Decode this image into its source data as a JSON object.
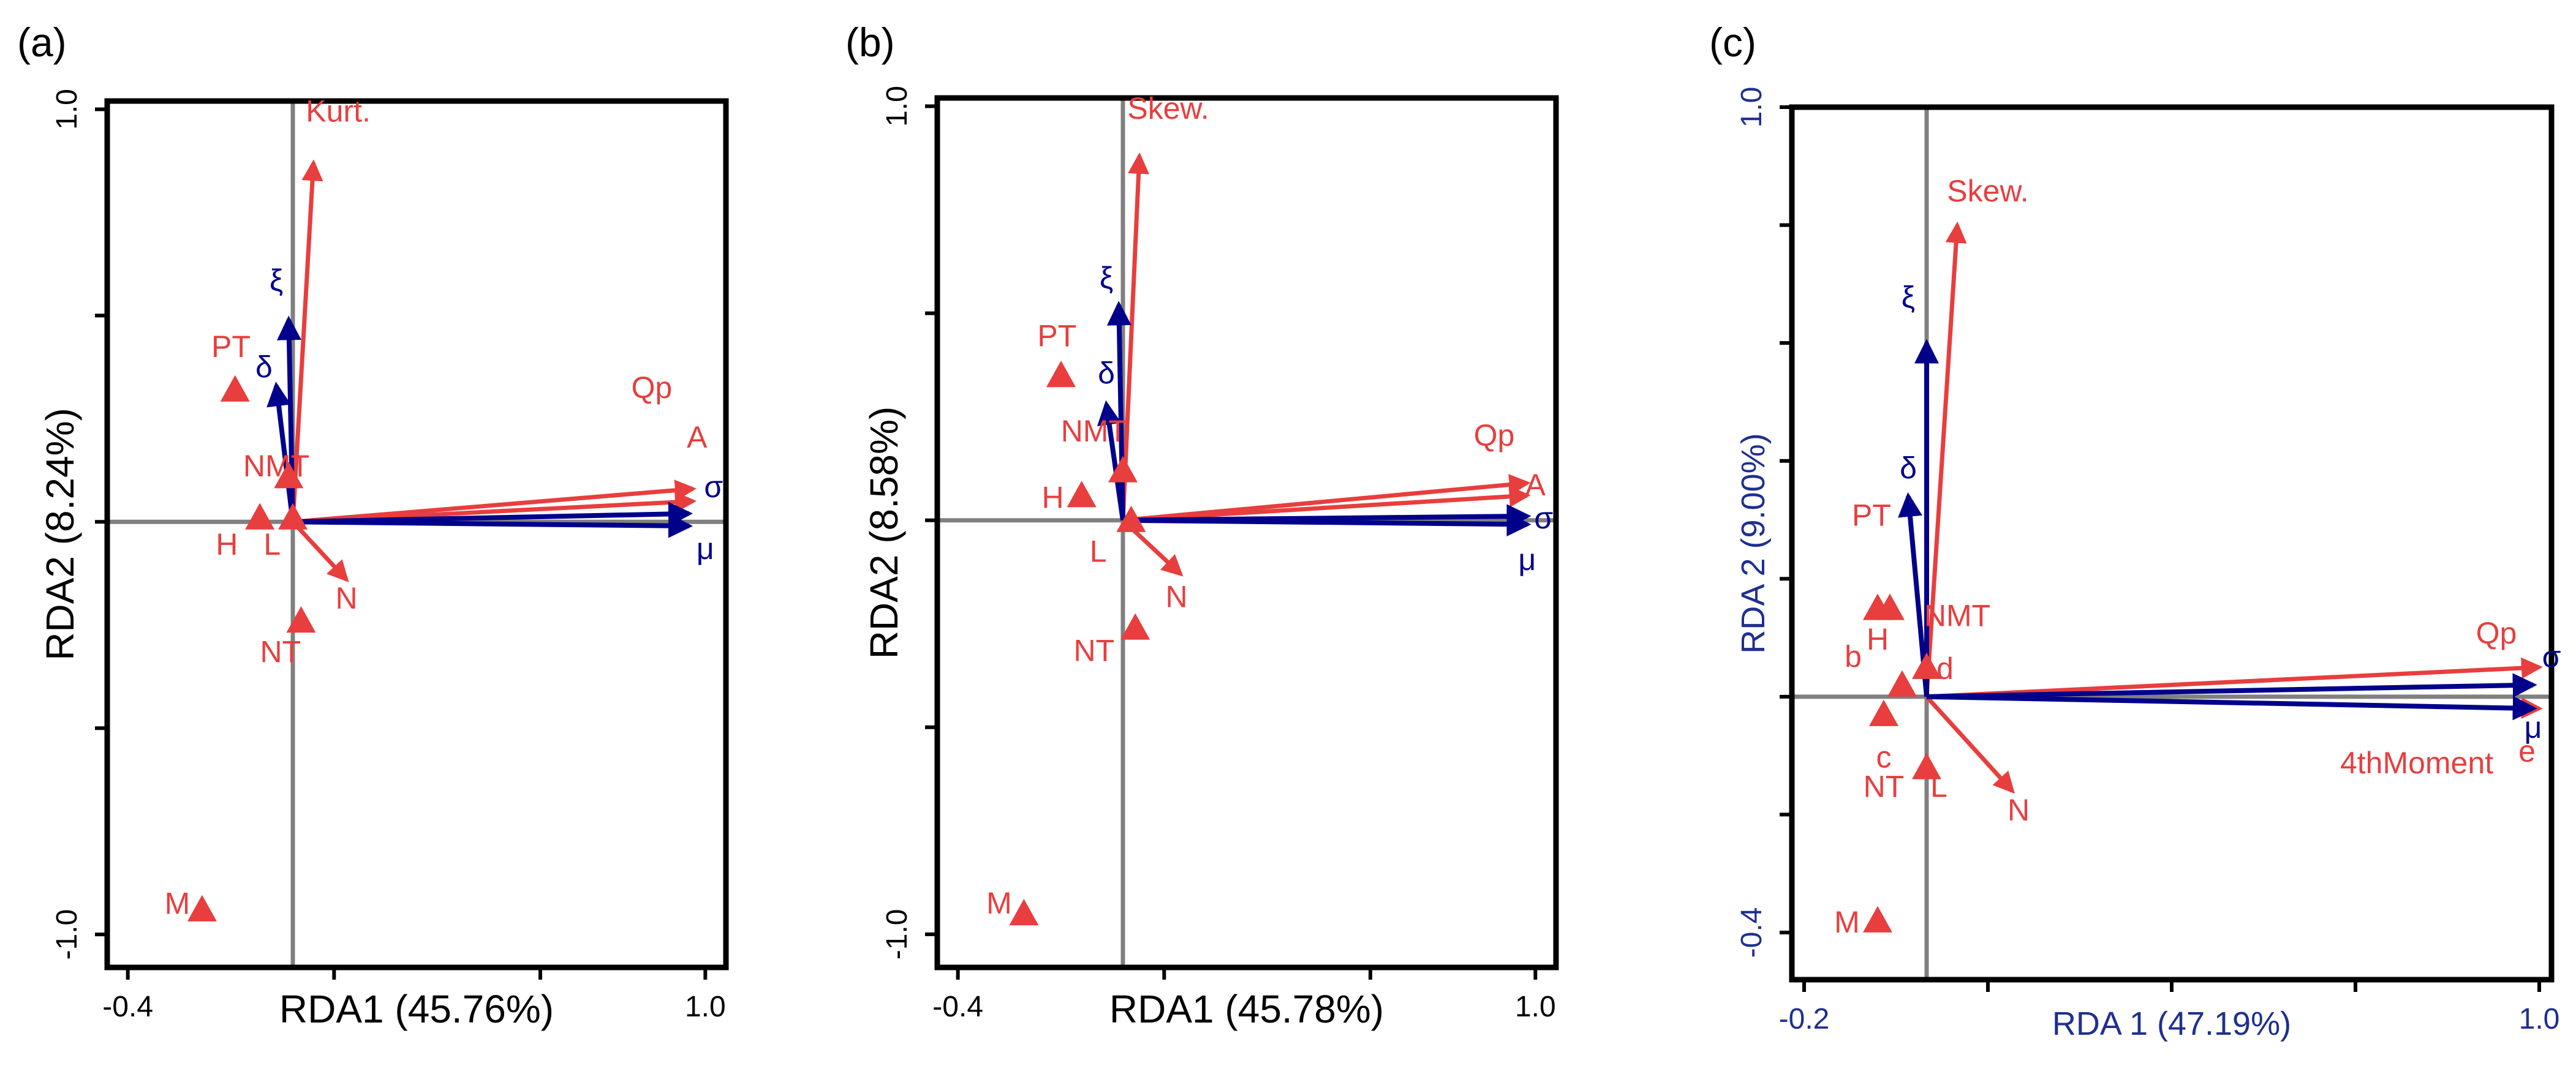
{
  "colors": {
    "response": "#e83e3e",
    "predictor": "#00008b",
    "axis": "#808080",
    "frame": "#000000",
    "panel_c_axis_text": "#1f2f8f"
  },
  "chart_data": [
    {
      "type": "scatter",
      "panel_label": "(a)",
      "xlabel": "RDA1 (45.76%)",
      "ylabel": "RDA2 (8.24%)",
      "xlim": [
        -0.45,
        1.05
      ],
      "ylim": [
        -1.08,
        1.02
      ],
      "x_tick_labels": [
        {
          "v": -0.4,
          "t": "-0.4"
        },
        {
          "v": 1.0,
          "t": "1.0"
        }
      ],
      "y_tick_labels": [
        {
          "v": 1.0,
          "t": "1.0"
        },
        {
          "v": -1.0,
          "t": "-1.0"
        }
      ],
      "x_tick_marks": [
        -0.4,
        0.1,
        0.6,
        1.0
      ],
      "y_tick_marks": [
        1.0,
        0.5,
        0.0,
        -0.5,
        -1.0
      ],
      "response_arrows": [
        {
          "label": "Kurt.",
          "x": 0.05,
          "y": 0.87,
          "lx": 0.11,
          "ly": 0.97
        },
        {
          "label": "Qp",
          "x": 0.97,
          "y": 0.08,
          "lx": 0.87,
          "ly": 0.3
        },
        {
          "label": "A",
          "x": 0.97,
          "y": 0.05,
          "lx": 0.98,
          "ly": 0.18
        },
        {
          "label": "N",
          "x": 0.13,
          "y": -0.14,
          "lx": 0.13,
          "ly": -0.21
        }
      ],
      "predictor_arrows": [
        {
          "label": "ξ",
          "x": -0.01,
          "y": 0.49,
          "lx": -0.04,
          "ly": 0.56
        },
        {
          "label": "δ",
          "x": -0.04,
          "y": 0.33,
          "lx": -0.07,
          "ly": 0.35
        },
        {
          "label": "σ",
          "x": 0.96,
          "y": 0.02,
          "lx": 1.02,
          "ly": 0.06
        },
        {
          "label": "μ",
          "x": 0.96,
          "y": -0.01,
          "lx": 1.0,
          "ly": -0.09
        }
      ],
      "sites": [
        {
          "label": "PT",
          "x": -0.14,
          "y": 0.32,
          "lx": -0.15,
          "ly": 0.4
        },
        {
          "label": "NMT",
          "x": -0.01,
          "y": 0.11,
          "lx": -0.04,
          "ly": 0.11
        },
        {
          "label": "H",
          "x": -0.08,
          "y": 0.01,
          "lx": -0.16,
          "ly": -0.08
        },
        {
          "label": "L",
          "x": 0.0,
          "y": 0.01,
          "lx": -0.05,
          "ly": -0.08
        },
        {
          "label": "NT",
          "x": 0.02,
          "y": -0.24,
          "lx": -0.03,
          "ly": -0.34
        },
        {
          "label": "M",
          "x": -0.22,
          "y": -0.94,
          "lx": -0.28,
          "ly": -0.95
        }
      ]
    },
    {
      "type": "scatter",
      "panel_label": "(b)",
      "xlabel": "RDA1 (45.78%)",
      "ylabel": "RDA2 (8.58%)",
      "xlim": [
        -0.45,
        1.05
      ],
      "ylim": [
        -1.08,
        1.02
      ],
      "x_tick_labels": [
        {
          "v": -0.4,
          "t": "-0.4"
        },
        {
          "v": 1.0,
          "t": "1.0"
        }
      ],
      "y_tick_labels": [
        {
          "v": 1.0,
          "t": "1.0"
        },
        {
          "v": -1.0,
          "t": "-1.0"
        }
      ],
      "x_tick_marks": [
        -0.4,
        0.1,
        0.6,
        1.0
      ],
      "y_tick_marks": [
        1.0,
        0.5,
        0.0,
        -0.5,
        -1.0
      ],
      "response_arrows": [
        {
          "label": "Skew.",
          "x": 0.04,
          "y": 0.88,
          "lx": 0.11,
          "ly": 0.97
        },
        {
          "label": "Qp",
          "x": 0.98,
          "y": 0.09,
          "lx": 0.9,
          "ly": 0.18
        },
        {
          "label": "A",
          "x": 0.98,
          "y": 0.06,
          "lx": 1.0,
          "ly": 0.06
        },
        {
          "label": "N",
          "x": 0.14,
          "y": -0.13,
          "lx": 0.13,
          "ly": -0.21
        }
      ],
      "predictor_arrows": [
        {
          "label": "ξ",
          "x": -0.01,
          "y": 0.52,
          "lx": -0.04,
          "ly": 0.56
        },
        {
          "label": "δ",
          "x": -0.04,
          "y": 0.28,
          "lx": -0.04,
          "ly": 0.33
        },
        {
          "label": "σ",
          "x": 0.98,
          "y": 0.01,
          "lx": 1.02,
          "ly": -0.02
        },
        {
          "label": "μ",
          "x": 0.98,
          "y": -0.01,
          "lx": 0.98,
          "ly": -0.12
        }
      ],
      "sites": [
        {
          "label": "PT",
          "x": -0.15,
          "y": 0.35,
          "lx": -0.16,
          "ly": 0.42
        },
        {
          "label": "NMT",
          "x": 0.0,
          "y": 0.12,
          "lx": -0.07,
          "ly": 0.19
        },
        {
          "label": "H",
          "x": -0.1,
          "y": 0.06,
          "lx": -0.17,
          "ly": 0.03
        },
        {
          "label": "L",
          "x": 0.02,
          "y": 0.0,
          "lx": -0.06,
          "ly": -0.1
        },
        {
          "label": "NT",
          "x": 0.03,
          "y": -0.26,
          "lx": -0.07,
          "ly": -0.34
        },
        {
          "label": "M",
          "x": -0.24,
          "y": -0.95,
          "lx": -0.3,
          "ly": -0.95
        }
      ]
    },
    {
      "type": "scatter",
      "panel_label": "(c)",
      "xlabel": "RDA 1 (47.19%)",
      "ylabel": "RDA 2 (9.00%)",
      "xlim": [
        -0.22,
        1.02
      ],
      "ylim": [
        -0.48,
        1.0
      ],
      "x_tick_labels": [
        {
          "v": -0.2,
          "t": "-0.2"
        },
        {
          "v": 1.0,
          "t": "1.0"
        }
      ],
      "y_tick_labels": [
        {
          "v": 1.0,
          "t": "1.0"
        },
        {
          "v": -0.4,
          "t": "-0.4"
        }
      ],
      "x_tick_marks": [
        -0.2,
        0.1,
        0.4,
        0.7,
        1.0
      ],
      "y_tick_marks": [
        1.0,
        0.8,
        0.6,
        0.4,
        0.2,
        0.0,
        -0.2,
        -0.4
      ],
      "response_arrows": [
        {
          "label": "Skew.",
          "x": 0.05,
          "y": 0.8,
          "lx": 0.1,
          "ly": 0.84
        },
        {
          "label": "Qp",
          "x": 1.0,
          "y": 0.05,
          "lx": 0.93,
          "ly": 0.09
        },
        {
          "label": "e",
          "x": 1.0,
          "y": -0.02,
          "lx": 0.98,
          "ly": -0.11
        },
        {
          "label": "N",
          "x": 0.14,
          "y": -0.16,
          "lx": 0.15,
          "ly": -0.21
        },
        {
          "label": "4thMoment",
          "x": null,
          "y": null,
          "lx": 0.8,
          "ly": -0.13
        }
      ],
      "predictor_arrows": [
        {
          "label": "ξ",
          "x": 0.0,
          "y": 0.6,
          "lx": -0.03,
          "ly": 0.66
        },
        {
          "label": "δ",
          "x": -0.03,
          "y": 0.34,
          "lx": -0.03,
          "ly": 0.37
        },
        {
          "label": "σ",
          "x": 0.99,
          "y": 0.02,
          "lx": 1.02,
          "ly": 0.05
        },
        {
          "label": "μ",
          "x": 0.99,
          "y": -0.02,
          "lx": 0.99,
          "ly": -0.07
        }
      ],
      "sites": [
        {
          "label": "PT",
          "x": null,
          "y": null,
          "lx": -0.09,
          "ly": 0.29
        },
        {
          "label": "b",
          "x": -0.08,
          "y": 0.15,
          "lx": -0.12,
          "ly": 0.05
        },
        {
          "label": "H",
          "x": -0.06,
          "y": 0.15,
          "lx": -0.08,
          "ly": 0.08
        },
        {
          "label": "NMT",
          "x": 0.0,
          "y": 0.05,
          "lx": 0.05,
          "ly": 0.12
        },
        {
          "label": "d",
          "x": -0.04,
          "y": 0.02,
          "lx": 0.03,
          "ly": 0.03
        },
        {
          "label": "c",
          "x": -0.07,
          "y": -0.03,
          "lx": -0.07,
          "ly": -0.12
        },
        {
          "label": "NT",
          "x": null,
          "y": null,
          "lx": -0.07,
          "ly": -0.17
        },
        {
          "label": "L",
          "x": 0.0,
          "y": -0.12,
          "lx": 0.02,
          "ly": -0.17
        },
        {
          "label": "M",
          "x": -0.08,
          "y": -0.38,
          "lx": -0.13,
          "ly": -0.4
        }
      ]
    }
  ]
}
